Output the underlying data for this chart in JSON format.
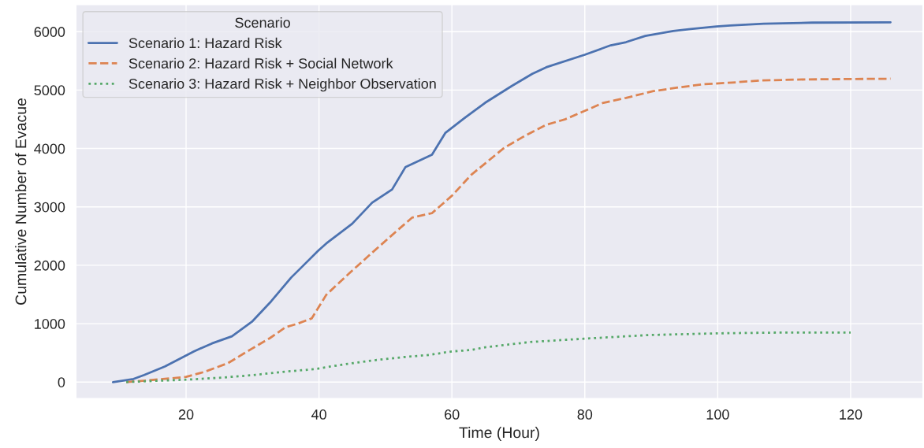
{
  "chart_data": {
    "type": "line",
    "xlabel": "Time (Hour)",
    "ylabel": "Cumulative Number of Evacue",
    "legend_title": "Scenario",
    "legend": "top left",
    "grid": true,
    "marker": "none",
    "xlim": [
      3.4,
      130.9
    ],
    "ylim": [
      -285,
      6465
    ],
    "xticks": [
      20,
      40,
      60,
      80,
      100,
      120
    ],
    "yticks": [
      0,
      1000,
      2000,
      3000,
      4000,
      5000,
      6000
    ],
    "series": [
      {
        "name": "Scenario 1: Hazard Risk",
        "color": "#4c72b0",
        "line_style": "solid",
        "x": [
          9,
          12.1,
          13.7,
          16.8,
          21.2,
          23.9,
          26.9,
          29.9,
          32.8,
          35.8,
          37.8,
          39.9,
          41.1,
          45,
          48,
          51,
          53,
          57,
          59,
          61.9,
          65,
          69,
          72.1,
          74.2,
          80,
          83.9,
          86.2,
          89.1,
          93.3,
          95.9,
          99.8,
          101.9,
          106.9,
          114.2,
          126
        ],
        "values": [
          0,
          54,
          122,
          266,
          527,
          662,
          784,
          1032,
          1383,
          1788,
          2014,
          2252,
          2374,
          2712,
          3072,
          3298,
          3679,
          3894,
          4264,
          4520,
          4782,
          5069,
          5277,
          5390,
          5605,
          5766,
          5820,
          5927,
          6011,
          6046,
          6088,
          6106,
          6136,
          6154,
          6160
        ]
      },
      {
        "name": "Scenario 2: Hazard Risk + Social Network",
        "color": "#dd8452",
        "line_style": "dashed",
        "x": [
          11,
          14.5,
          17.6,
          20,
          22.8,
          26.3,
          29.9,
          32.6,
          35,
          36.8,
          38.9,
          41.1,
          44.5,
          48,
          51.6,
          54,
          57,
          60,
          62.9,
          67.9,
          70.8,
          74.1,
          77.1,
          82.8,
          86.2,
          90.2,
          93.8,
          97.7,
          102.2,
          106.4,
          113.2,
          126
        ],
        "values": [
          0,
          32,
          63,
          90,
          176,
          324,
          572,
          752,
          941,
          1000,
          1090,
          1495,
          1856,
          2216,
          2577,
          2815,
          2892,
          3190,
          3548,
          4013,
          4204,
          4401,
          4502,
          4782,
          4866,
          4979,
          5039,
          5098,
          5128,
          5164,
          5182,
          5194
        ]
      },
      {
        "name": "Scenario 3: Hazard Risk + Neighbor Observation",
        "color": "#55a868",
        "line_style": "dotted",
        "x": [
          11,
          15.7,
          20,
          25.5,
          30.3,
          35,
          39.3,
          43.7,
          48,
          52.7,
          56.6,
          60,
          62.9,
          65,
          71.8,
          80.2,
          89.6,
          100.1,
          109,
          120
        ],
        "values": [
          0,
          23,
          41,
          77,
          122,
          180,
          221,
          302,
          369,
          428,
          465,
          525,
          549,
          596,
          686,
          745,
          805,
          835,
          847,
          847
        ]
      }
    ]
  }
}
